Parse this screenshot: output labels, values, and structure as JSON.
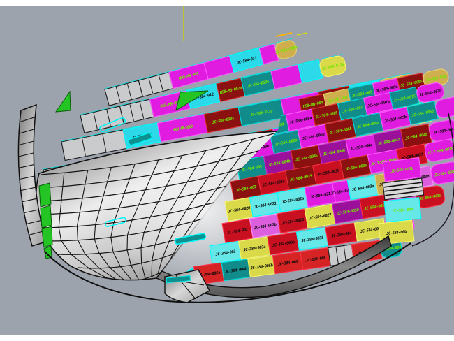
{
  "scene": {
    "app": "3d-cad-viewport",
    "background": {
      "page": "#FFFFFF",
      "viewport": "#9DA3AC"
    },
    "construction_line_color": "#C6D200",
    "label_colors": {
      "g": "#72E800",
      "k": "#0A0A0A"
    }
  },
  "palette": {
    "gray": "#C9CBCD",
    "magenta": "#DF1CDF",
    "orchid": "#DD5FDD",
    "purple": "#9B109B",
    "teal": "#128B8B",
    "lightcyan": "#66E8E8",
    "cyan": "#2BD9E8",
    "darkred": "#8B1010",
    "crimson": "#C81020",
    "red": "#D62424",
    "yellow": "#D9D94A",
    "khaki": "#CFAE4E",
    "green": "#23C423"
  },
  "bands": [
    {
      "name": "deck-band-1",
      "segments": [
        {
          "c": "gray"
        },
        {
          "c": "gray"
        },
        {
          "c": "magenta",
          "t": "HSB-MB-001",
          "lc": "g"
        },
        {
          "c": "magenta"
        },
        {
          "c": "cyan",
          "t": "JC-584-011",
          "lc": "k"
        },
        {
          "c": "magenta"
        },
        {
          "c": "khaki",
          "t": "JC-584-010a",
          "lc": "g"
        }
      ]
    },
    {
      "name": "deck-band-2",
      "segments": [
        {
          "c": "gray"
        },
        {
          "c": "gray"
        },
        {
          "c": "magenta",
          "t": "HSB-MB-002",
          "lc": "g"
        },
        {
          "c": "cyan",
          "t": "JC-584-012",
          "lc": "k"
        },
        {
          "c": "darkred",
          "t": "HSB-MB-002a",
          "lc": "g"
        },
        {
          "c": "teal",
          "t": "JC-584-0125",
          "lc": "g"
        },
        {
          "c": "magenta"
        },
        {
          "c": "cyan"
        },
        {
          "c": "yellow",
          "t": "JC-584-012a",
          "lc": "g"
        }
      ]
    },
    {
      "name": "deck-band-3",
      "segments": [
        {
          "c": "gray"
        },
        {
          "c": "cyan",
          "t": "JC-584-013",
          "lc": "k"
        },
        {
          "c": "magenta",
          "t": "HSB-MB-003",
          "lc": "g"
        },
        {
          "c": "darkred",
          "t": "JC-584-0135",
          "lc": "g"
        },
        {
          "c": "teal",
          "t": "JC-584-013a",
          "lc": "g"
        },
        {
          "c": "magenta"
        },
        {
          "c": "darkred",
          "t": "HSB-MB-003a",
          "lc": "g"
        },
        {
          "c": "cyan"
        },
        {
          "c": "khaki",
          "t": "JC-584-013b",
          "lc": "g"
        }
      ]
    },
    {
      "name": "deck-band-4",
      "segments": [
        {
          "c": "gray"
        },
        {
          "c": "cyan"
        },
        {
          "c": "teal",
          "t": "JC-584-014",
          "lc": "g"
        },
        {
          "c": "magenta",
          "t": "HSB-MB-004a",
          "lc": "g"
        },
        {
          "c": "darkred",
          "t": "JC-584-0145",
          "lc": "g"
        },
        {
          "c": "magenta",
          "t": "JC-584-014a",
          "lc": "g"
        },
        {
          "c": "teal",
          "t": "JC-584-014b",
          "lc": "g"
        },
        {
          "c": "darkred"
        },
        {
          "c": "magenta"
        },
        {
          "c": "yellow",
          "t": "JC-584-015",
          "lc": "g"
        }
      ]
    }
  ],
  "checker_rows": [
    {
      "cells": [
        {
          "c": "darkred",
          "t": "HSB-MB-004",
          "lc": "g"
        },
        {
          "c": "khaki",
          "t": "HSB-MB-005",
          "lc": "g"
        },
        {
          "c": "teal",
          "t": "JC-584-009",
          "lc": "g"
        },
        {
          "c": "magenta",
          "t": "JC-584-009a",
          "lc": "k"
        },
        {
          "c": "darkred",
          "t": "JC-584-0095",
          "lc": "g"
        },
        {
          "c": "khaki",
          "t": "JC-584-010",
          "lc": "g"
        }
      ]
    },
    {
      "cells": [
        {
          "c": "teal",
          "t": "JC-584-008",
          "lc": "g"
        },
        {
          "c": "magenta",
          "t": "JC-584-008a",
          "lc": "k"
        },
        {
          "c": "darkred",
          "t": "JC-584-0085",
          "lc": "g"
        },
        {
          "c": "teal",
          "t": "JC-584-007",
          "lc": "g"
        },
        {
          "c": "magenta",
          "t": "JC-584-007a",
          "lc": "k"
        },
        {
          "c": "teal",
          "t": "JC-584-0075",
          "lc": "g"
        },
        {
          "c": "magenta",
          "t": "JC-584-007b",
          "lc": "k"
        }
      ]
    },
    {
      "cells": [
        {
          "c": "magenta",
          "t": "JC-584-006",
          "lc": "k"
        },
        {
          "c": "teal",
          "t": "JC-584-006a",
          "lc": "g"
        },
        {
          "c": "magenta",
          "t": "JC-584-006b",
          "lc": "k"
        },
        {
          "c": "darkred",
          "t": "JC-584-0065",
          "lc": "g"
        },
        {
          "c": "teal",
          "t": "JC-584-005a",
          "lc": "g"
        },
        {
          "c": "magenta",
          "t": "JC-584-005b",
          "lc": "k"
        },
        {
          "c": "teal",
          "t": "JC-584-0055",
          "lc": "g"
        },
        {
          "c": "magenta"
        }
      ]
    },
    {
      "cells": [
        {
          "c": "teal",
          "t": "JC-584-005",
          "lc": "g"
        },
        {
          "c": "purple",
          "t": "JC-584-004b",
          "lc": "g"
        },
        {
          "c": "darkred",
          "t": "JC-584-0045",
          "lc": "g"
        },
        {
          "c": "purple",
          "t": "JC-584-0046",
          "lc": "g"
        },
        {
          "c": "magenta",
          "t": "JC-584-004a",
          "lc": "k"
        },
        {
          "c": "purple",
          "t": "JC-584-0047",
          "lc": "g"
        },
        {
          "c": "darkred",
          "t": "JC-584-0048",
          "lc": "g"
        },
        {
          "c": "magenta",
          "t": "JC-584-004",
          "lc": "k"
        }
      ]
    },
    {
      "cells": [
        {
          "c": "darkred",
          "t": "JC-584-003",
          "lc": "g"
        },
        {
          "c": "crimson",
          "t": "JC-584-003a",
          "lc": "k"
        },
        {
          "c": "darkred",
          "t": "JC-584-0035",
          "lc": "g"
        },
        {
          "c": "crimson",
          "t": "JC-584-003b",
          "lc": "k"
        },
        {
          "c": "darkred",
          "t": "JC-584-0036",
          "lc": "g"
        },
        {
          "c": "magenta",
          "t": "JC-7-584-004a",
          "lc": "g"
        },
        {
          "c": "crimson",
          "t": "JC-584-0037",
          "lc": "k"
        },
        {
          "c": "magenta",
          "t": "JC-7-584-003b",
          "lc": "g"
        }
      ]
    },
    {
      "cells": [
        {
          "c": "yellow",
          "t": "JC-584-0020",
          "lc": "k"
        },
        {
          "c": "lightcyan",
          "t": "JC-584-0021",
          "lc": "k"
        },
        {
          "c": "lightcyan",
          "t": "JC-584-002a",
          "lc": "k"
        },
        {
          "c": "magenta",
          "t": "JC-584-021",
          "lc": "k"
        },
        {
          "c": "magenta",
          "t": "JC-584-0215",
          "lc": "k"
        },
        {
          "c": "lightcyan",
          "t": "JC-584-003a",
          "lc": "k"
        },
        {
          "c": "khaki",
          "t": "JC-584-0025",
          "lc": "k"
        },
        {
          "c": "orchid",
          "t": "JC-584-003b",
          "lc": "k"
        },
        {
          "c": "magenta",
          "t": "JC-584-004a",
          "lc": "g"
        }
      ]
    },
    {
      "cells": [
        {
          "c": "crimson",
          "t": "JC-584-002",
          "lc": "k"
        },
        {
          "c": "orchid",
          "t": "JC-584-002b",
          "lc": "k"
        },
        {
          "c": "crimson",
          "t": "JC-584-0026",
          "lc": "k"
        },
        {
          "c": "yellow",
          "t": "JC-584-0027",
          "lc": "k"
        },
        {
          "c": "purple",
          "t": "JC-584-0050",
          "lc": "g"
        },
        {
          "c": "crimson",
          "t": "JC-584-005a",
          "lc": "g"
        },
        {
          "c": "orchid",
          "t": "JC-584-005b",
          "lc": "g"
        },
        {
          "c": "crimson",
          "t": "JC-584-0055",
          "lc": "g"
        }
      ]
    },
    {
      "cells": [
        {
          "c": "lightcyan",
          "t": "JC-384-003",
          "lc": "k"
        },
        {
          "c": "yellow",
          "t": "JC-384-003a",
          "lc": "k"
        },
        {
          "c": "crimson",
          "t": "JC-384-003b",
          "lc": "k"
        },
        {
          "c": "lightcyan",
          "t": "JC-384-0035",
          "lc": "k"
        },
        {
          "c": "crimson",
          "t": "JC-384-004",
          "lc": "k"
        },
        {
          "c": "yellow",
          "t": "JC-584-00b",
          "lc": "k"
        },
        {
          "c": "magenta",
          "t": "JC-584-005b",
          "lc": "g"
        }
      ]
    },
    {
      "cells": [
        {
          "c": "cyan",
          "t": "JC-3M-0005a",
          "lc": "k",
          "tri": true
        },
        {
          "c": "red",
          "t": "JC-384-005a",
          "lc": "k"
        },
        {
          "c": "teal",
          "t": "JC-384-004b",
          "lc": "k"
        },
        {
          "c": "yellow",
          "t": "JC-384-005b",
          "lc": "k"
        },
        {
          "c": "red",
          "t": "JC-384-005",
          "lc": "k"
        },
        {
          "c": "red",
          "t": "JC-384-006",
          "lc": "k"
        },
        {
          "c": "gray"
        },
        {
          "c": "red",
          "t": "JC-384-007",
          "lc": "k"
        },
        {
          "c": "teal",
          "t": "JC-384-008",
          "lc": "g"
        }
      ]
    }
  ],
  "wrap_panels": [
    {
      "c": "magenta",
      "t": "JC-584-003b",
      "lc": "g"
    },
    {
      "c": "gray",
      "name": "ladder-strip"
    },
    {
      "c": "lightcyan",
      "t": "JC-584-004",
      "lc": "g"
    },
    {
      "c": "yellow",
      "t": "JC-584-00b",
      "lc": "k"
    }
  ]
}
